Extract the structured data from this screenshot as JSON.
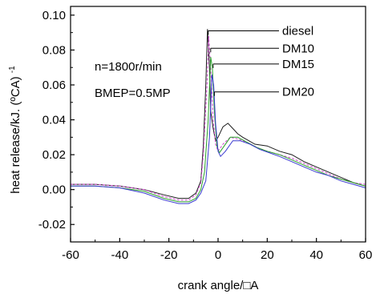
{
  "chart_data": {
    "type": "line",
    "xlabel": "crank angle/□A",
    "ylabel_main": "heat release/kJ. (ºCA)",
    "ylabel_sup": "-1",
    "xlim": [
      -60,
      60
    ],
    "ylim": [
      -0.03,
      0.105
    ],
    "xticks": [
      -60,
      -40,
      -20,
      0,
      20,
      40,
      60
    ],
    "yticks": [
      -0.02,
      0.0,
      0.02,
      0.04,
      0.06,
      0.08,
      0.1
    ],
    "ytick_labels": [
      "-0.02",
      "0.00",
      "0.02",
      "0.04",
      "0.06",
      "0.08",
      "0.10"
    ],
    "grid": false,
    "annotations": [
      "n=1800r/min",
      "BMEP=0.5MP"
    ],
    "series": [
      {
        "name": "diesel",
        "color": "#1c1c1c",
        "dash": "",
        "label_point": [
          -4,
          0.091
        ],
        "points": [
          [
            -60,
            0.003
          ],
          [
            -50,
            0.003
          ],
          [
            -40,
            0.002
          ],
          [
            -30,
            0.0
          ],
          [
            -22,
            -0.003
          ],
          [
            -16,
            -0.005
          ],
          [
            -12,
            -0.005
          ],
          [
            -9,
            -0.002
          ],
          [
            -7,
            0.005
          ],
          [
            -6,
            0.025
          ],
          [
            -5,
            0.06
          ],
          [
            -4.3,
            0.092
          ],
          [
            -3.5,
            0.07
          ],
          [
            -3,
            0.045
          ],
          [
            -2,
            0.035
          ],
          [
            -1,
            0.028
          ],
          [
            0,
            0.03
          ],
          [
            2,
            0.036
          ],
          [
            4,
            0.038
          ],
          [
            6,
            0.035
          ],
          [
            8,
            0.032
          ],
          [
            10,
            0.03
          ],
          [
            15,
            0.026
          ],
          [
            20,
            0.025
          ],
          [
            25,
            0.022
          ],
          [
            30,
            0.02
          ],
          [
            35,
            0.016
          ],
          [
            40,
            0.013
          ],
          [
            45,
            0.01
          ],
          [
            50,
            0.007
          ],
          [
            55,
            0.004
          ],
          [
            60,
            0.002
          ]
        ]
      },
      {
        "name": "DM10",
        "color": "#cc44cc",
        "dash": "3,2",
        "label_point": [
          -3,
          0.081
        ],
        "points": [
          [
            -60,
            0.003
          ],
          [
            -50,
            0.003
          ],
          [
            -40,
            0.002
          ],
          [
            -30,
            0.0
          ],
          [
            -22,
            -0.004
          ],
          [
            -16,
            -0.006
          ],
          [
            -12,
            -0.006
          ],
          [
            -9,
            -0.003
          ],
          [
            -7,
            0.004
          ],
          [
            -6,
            0.02
          ],
          [
            -4.5,
            0.06
          ],
          [
            -3.8,
            0.088
          ],
          [
            -3,
            0.07
          ],
          [
            -2,
            0.04
          ],
          [
            -1,
            0.026
          ],
          [
            0,
            0.022
          ],
          [
            2,
            0.026
          ],
          [
            5,
            0.03
          ],
          [
            8,
            0.029
          ],
          [
            12,
            0.027
          ],
          [
            16,
            0.024
          ],
          [
            20,
            0.022
          ],
          [
            25,
            0.02
          ],
          [
            30,
            0.018
          ],
          [
            35,
            0.015
          ],
          [
            40,
            0.012
          ],
          [
            45,
            0.009
          ],
          [
            50,
            0.006
          ],
          [
            55,
            0.004
          ],
          [
            60,
            0.003
          ]
        ]
      },
      {
        "name": "DM15",
        "color": "#2aa02a",
        "dash": "",
        "label_point": [
          -2,
          0.072
        ],
        "points": [
          [
            -60,
            0.002
          ],
          [
            -50,
            0.002
          ],
          [
            -40,
            0.001
          ],
          [
            -30,
            -0.001
          ],
          [
            -22,
            -0.005
          ],
          [
            -16,
            -0.007
          ],
          [
            -12,
            -0.007
          ],
          [
            -9,
            -0.005
          ],
          [
            -7,
            0.0
          ],
          [
            -5.5,
            0.01
          ],
          [
            -4,
            0.04
          ],
          [
            -3,
            0.076
          ],
          [
            -2.3,
            0.07
          ],
          [
            -1.5,
            0.045
          ],
          [
            -0.5,
            0.025
          ],
          [
            0.5,
            0.021
          ],
          [
            2,
            0.024
          ],
          [
            5,
            0.03
          ],
          [
            8,
            0.03
          ],
          [
            12,
            0.027
          ],
          [
            16,
            0.024
          ],
          [
            20,
            0.022
          ],
          [
            25,
            0.02
          ],
          [
            30,
            0.017
          ],
          [
            35,
            0.014
          ],
          [
            40,
            0.011
          ],
          [
            45,
            0.008
          ],
          [
            50,
            0.006
          ],
          [
            55,
            0.004
          ],
          [
            60,
            0.002
          ]
        ]
      },
      {
        "name": "DM20",
        "color": "#3a3ad0",
        "dash": "",
        "label_point": [
          -1.5,
          0.056
        ],
        "points": [
          [
            -60,
            0.002
          ],
          [
            -50,
            0.002
          ],
          [
            -40,
            0.001
          ],
          [
            -30,
            -0.002
          ],
          [
            -22,
            -0.006
          ],
          [
            -16,
            -0.008
          ],
          [
            -12,
            -0.008
          ],
          [
            -9,
            -0.006
          ],
          [
            -7,
            -0.002
          ],
          [
            -5,
            0.005
          ],
          [
            -3.5,
            0.03
          ],
          [
            -2.5,
            0.066
          ],
          [
            -1.8,
            0.06
          ],
          [
            -1,
            0.038
          ],
          [
            0,
            0.022
          ],
          [
            1,
            0.019
          ],
          [
            3,
            0.022
          ],
          [
            6,
            0.028
          ],
          [
            9,
            0.028
          ],
          [
            13,
            0.026
          ],
          [
            17,
            0.023
          ],
          [
            21,
            0.021
          ],
          [
            25,
            0.019
          ],
          [
            30,
            0.016
          ],
          [
            35,
            0.013
          ],
          [
            40,
            0.01
          ],
          [
            45,
            0.008
          ],
          [
            50,
            0.005
          ],
          [
            55,
            0.003
          ],
          [
            60,
            0.001
          ]
        ]
      }
    ]
  }
}
